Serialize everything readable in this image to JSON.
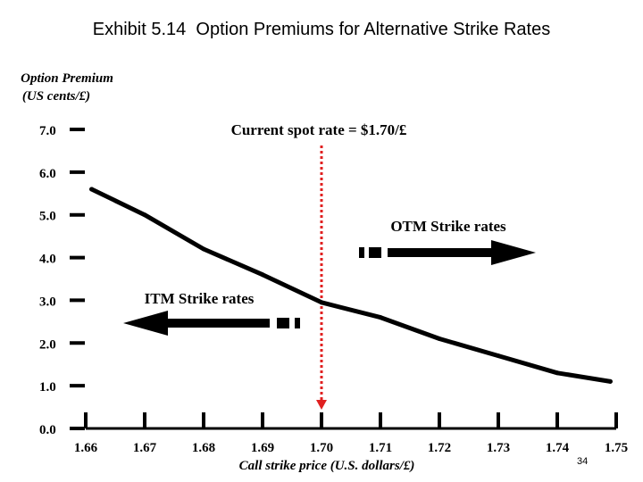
{
  "page": {
    "title": "Exhibit 5.14  Option Premiums for Alternative Strike Rates",
    "slide_number": "34"
  },
  "chart_data": {
    "type": "line",
    "title": "Exhibit 5.14  Option Premiums for Alternative Strike Rates",
    "ylabel_line1": "Option Premium",
    "ylabel_line2": "(US cents/£)",
    "xlabel": "Call strike price (U.S. dollars/£)",
    "ylim": [
      0,
      7
    ],
    "xlim": [
      1.66,
      1.75
    ],
    "y_ticks": [
      "0.0",
      "1.0",
      "2.0",
      "3.0",
      "4.0",
      "5.0",
      "6.0",
      "7.0"
    ],
    "x_ticks": [
      "1.66",
      "1.67",
      "1.68",
      "1.69",
      "1.70",
      "1.71",
      "1.72",
      "1.73",
      "1.74",
      "1.75"
    ],
    "series": [
      {
        "name": "Option premium",
        "x": [
          1.661,
          1.67,
          1.68,
          1.69,
          1.7,
          1.71,
          1.72,
          1.73,
          1.74,
          1.749
        ],
        "y": [
          5.6,
          5.0,
          4.2,
          3.6,
          2.95,
          2.6,
          2.1,
          1.7,
          1.3,
          1.1
        ]
      }
    ],
    "spot_rate": 1.7,
    "annotations": {
      "spot": "Current spot rate = $1.70/£",
      "otm": "OTM Strike rates",
      "itm": "ITM Strike rates"
    },
    "colors": {
      "line": "#000000",
      "spot_line": "#e02020",
      "background": "#ffffff"
    }
  }
}
